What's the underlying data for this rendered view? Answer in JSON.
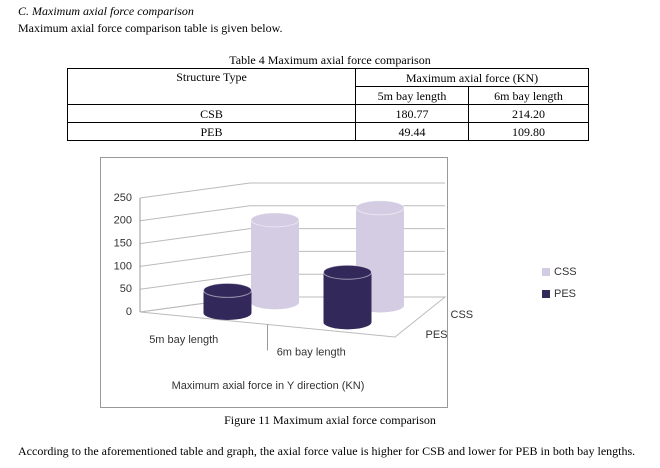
{
  "section": {
    "heading": "C. Maximum axial force comparison",
    "intro": "Maximum axial force comparison table is given below."
  },
  "table": {
    "caption": "Table 4 Maximum axial force comparison",
    "header": [
      "Structure Type",
      "Maximum axial force (KN)"
    ],
    "subheader": [
      "5m bay length",
      "6m bay length"
    ],
    "rows": [
      [
        "CSB",
        "180.77",
        "214.20"
      ],
      [
        "PEB",
        "49.44",
        "109.80"
      ]
    ]
  },
  "chart_data": {
    "type": "bar",
    "x_label": "Maximum axial force in Y direction (KN)",
    "categories": [
      "5m bay length",
      "6m bay length"
    ],
    "series": [
      {
        "name": "PES",
        "color": "#33285a",
        "values": [
          49.44,
          109.8
        ]
      },
      {
        "name": "CSS",
        "color": "#d3cce3",
        "values": [
          180.77,
          214.2
        ]
      }
    ],
    "ylim": [
      0,
      250
    ],
    "yticks": [
      0,
      50,
      100,
      150,
      200,
      250
    ],
    "grid": true,
    "legend": "right"
  },
  "figure_caption": "Figure 11 Maximum axial force comparison",
  "paragraph": "According to the aforementioned table and graph, the axial force value is higher for CSB and lower for PEB in both bay lengths."
}
